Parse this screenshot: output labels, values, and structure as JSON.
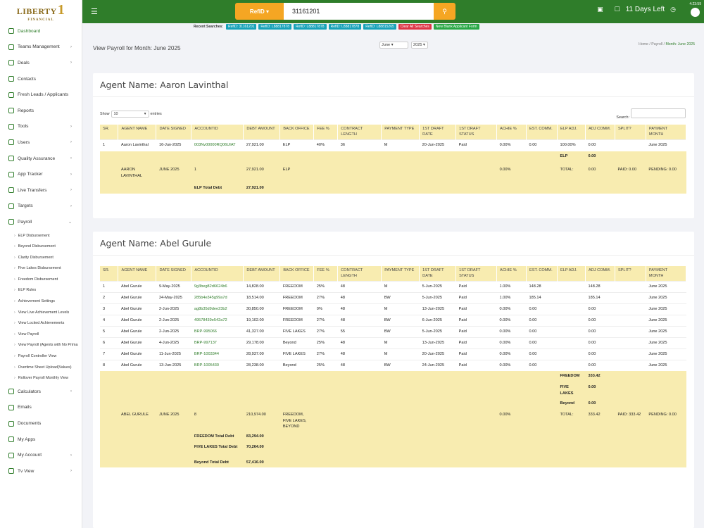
{
  "brand": {
    "name": "LIBERTY",
    "sub": "FINANCIAL",
    "mark": "1"
  },
  "sidebar": {
    "items": [
      {
        "label": "Dashboard",
        "active": true,
        "chev": ""
      },
      {
        "label": "Teams Management",
        "chev": "›"
      },
      {
        "label": "Deals",
        "chev": "›"
      },
      {
        "label": "Contacts",
        "chev": ""
      },
      {
        "label": "Fresh Leads / Applicants",
        "chev": ""
      },
      {
        "label": "Reports",
        "chev": ""
      },
      {
        "label": "Tools",
        "chev": "›"
      },
      {
        "label": "Users",
        "chev": "›"
      },
      {
        "label": "Quality Assurance",
        "chev": "›"
      },
      {
        "label": "App Tracker",
        "chev": "›"
      },
      {
        "label": "Live Transfers",
        "chev": "›"
      },
      {
        "label": "Targets",
        "chev": "›"
      },
      {
        "label": "Payroll",
        "chev": "⌄"
      }
    ],
    "sub": [
      "ELP Disbursement",
      "Beyond Disbursement",
      "Clarity Disbursement",
      "Five Lakes Disbursement",
      "Freedom Disbursement",
      "ELP Rules",
      "Achievement Settings",
      "View Live Achievement Levels",
      "View Locked Achievements",
      "View Payroll",
      "View Payroll (Agents with No Prima",
      "Payroll Controller View",
      "Overtime Sheet Upload(Values)",
      "Rollover Payroll Monthly View"
    ],
    "items2": [
      {
        "label": "Calculators",
        "chev": "›"
      },
      {
        "label": "Emails",
        "chev": ""
      },
      {
        "label": "Documents",
        "chev": ""
      },
      {
        "label": "My Apps",
        "chev": ""
      },
      {
        "label": "My Account",
        "chev": "›"
      },
      {
        "label": "Tv View",
        "chev": "›"
      }
    ]
  },
  "topbar": {
    "select_label": "RefID",
    "search_value": "31161201",
    "days_left": "11 Days Left",
    "time": "4:23:59"
  },
  "recent": {
    "label": "Recent Searches:",
    "chips": [
      "RefID: 31161201",
      "RefID: L88817878",
      "RefID: L88817878",
      "RefID: L88817878",
      "RefID: L88815265"
    ],
    "clear": "Clear All Searches",
    "new": "New Blank Applicant Form"
  },
  "page": {
    "title": "View Payroll for Month: June 2025",
    "month": "June",
    "year": "2025",
    "crumb_home": "Home",
    "crumb_mid": "Payroll",
    "crumb_cur": "Month: June 2025"
  },
  "columns": [
    "SR.",
    "AGENT NAME",
    "DATE SIGNED",
    "ACCOUNTID",
    "DEBT AMOUNT",
    "BACK OFFICE",
    "FEE %",
    "CONTRACT LENGTH",
    "PAYMENT TYPE",
    "1ST DRAFT DATE",
    "1ST DRAFT STATUS",
    "ACHIE %",
    "EST. COMM.",
    "ELP ADJ.",
    "ADJ COMM.",
    "SPLIT?",
    "PAYMENT MONTH"
  ],
  "card1": {
    "agent": "Agent Name: Aaron Lavinthal",
    "show": "Show",
    "entries": "entries",
    "page_len": "10",
    "search": "Search:",
    "rows": [
      [
        "1",
        "Aaron Lavinthal",
        "16-Jun-2025",
        "003Nv00000RQ06UIAT",
        "27,921.00",
        "ELP",
        "40%",
        "36",
        "M",
        "20-Jun-2025",
        "Paid",
        "0.00%",
        "0.00",
        "100.00%",
        "0.00",
        "",
        "June 2025"
      ]
    ],
    "elp_label": "ELP",
    "elp_val": "0.00",
    "total": {
      "name": "AARON LAVINTHAL",
      "month": "JUNE 2025",
      "count": "1",
      "amount": "27,921.00",
      "office": "ELP",
      "achie": "0.00%",
      "total": "TOTAL:",
      "comm": "0.00",
      "paid": "PAID: 0.00",
      "pending": "PENDING: 0.00"
    },
    "debt_label": "ELP Total Debt",
    "debt_val": "27,921.00"
  },
  "card2": {
    "agent": "Agent Name: Abel Gurule",
    "rows": [
      [
        "1",
        "Abel Gurule",
        "9-May-2025",
        "9g3beg82d6624b6",
        "14,828.00",
        "FREEDOM",
        "25%",
        "48",
        "M",
        "5-Jun-2025",
        "Paid",
        "1.00%",
        "148.28",
        "",
        "148.28",
        "",
        "June 2025"
      ],
      [
        "2",
        "Abel Gurule",
        "24-May-2025",
        "285b4e345g99a7d",
        "18,514.00",
        "FREEDOM",
        "27%",
        "48",
        "BW",
        "5-Jun-2025",
        "Paid",
        "1.00%",
        "185.14",
        "",
        "185.14",
        "",
        "June 2025"
      ],
      [
        "3",
        "Abel Gurule",
        "2-Jun-2025",
        "ag8b35d9dee23b2",
        "30,850.00",
        "FREEDOM",
        "0%",
        "48",
        "M",
        "13-Jun-2025",
        "Paid",
        "0.00%",
        "0.00",
        "",
        "0.00",
        "",
        "June 2025"
      ],
      [
        "4",
        "Abel Gurule",
        "2-Jun-2025",
        "49578439e542a72",
        "19,102.00",
        "FREEDOM",
        "27%",
        "48",
        "BW",
        "6-Jun-2025",
        "Paid",
        "0.00%",
        "0.00",
        "",
        "0.00",
        "",
        "June 2025"
      ],
      [
        "5",
        "Abel Gurule",
        "2-Jun-2025",
        "BRP-995066",
        "41,327.00",
        "FIVE LAKES",
        "27%",
        "55",
        "BW",
        "5-Jun-2025",
        "Paid",
        "0.00%",
        "0.00",
        "",
        "0.00",
        "",
        "June 2025"
      ],
      [
        "6",
        "Abel Gurule",
        "4-Jun-2025",
        "BRP-997137",
        "29,178.00",
        "Beyond",
        "25%",
        "48",
        "M",
        "13-Jun-2025",
        "Paid",
        "0.00%",
        "0.00",
        "",
        "0.00",
        "",
        "June 2025"
      ],
      [
        "7",
        "Abel Gurule",
        "11-Jun-2025",
        "BRP-1003344",
        "28,937.00",
        "FIVE LAKES",
        "27%",
        "48",
        "M",
        "20-Jun-2025",
        "Paid",
        "0.00%",
        "0.00",
        "",
        "0.00",
        "",
        "June 2025"
      ],
      [
        "8",
        "Abel Gurule",
        "13-Jun-2025",
        "BRP-1005430",
        "28,238.00",
        "Beyond",
        "25%",
        "48",
        "BW",
        "24-Jun-2025",
        "Paid",
        "0.00%",
        "0.00",
        "",
        "0.00",
        "",
        "June 2025"
      ]
    ],
    "office_sums": [
      [
        "FREEDOM",
        "333.42"
      ],
      [
        "FIVE LAKES",
        "0.00"
      ],
      [
        "Beyond",
        "0.00"
      ]
    ],
    "total": {
      "name": "ABEL GURULE",
      "month": "JUNE 2025",
      "count": "8",
      "amount": "210,974.00",
      "office": "FREEDOM, FIVE LAKES, BEYOND",
      "achie": "0.00%",
      "total": "TOTAL:",
      "comm": "333.42",
      "paid": "PAID: 333.42",
      "pending": "PENDING: 0.00"
    },
    "debts": [
      [
        "FREEDOM Total Debt",
        "83,294.00"
      ],
      [
        "FIVE LAKES Total Debt",
        "70,264.00"
      ],
      [
        "Beyond Total Debt",
        "57,416.00"
      ]
    ]
  }
}
